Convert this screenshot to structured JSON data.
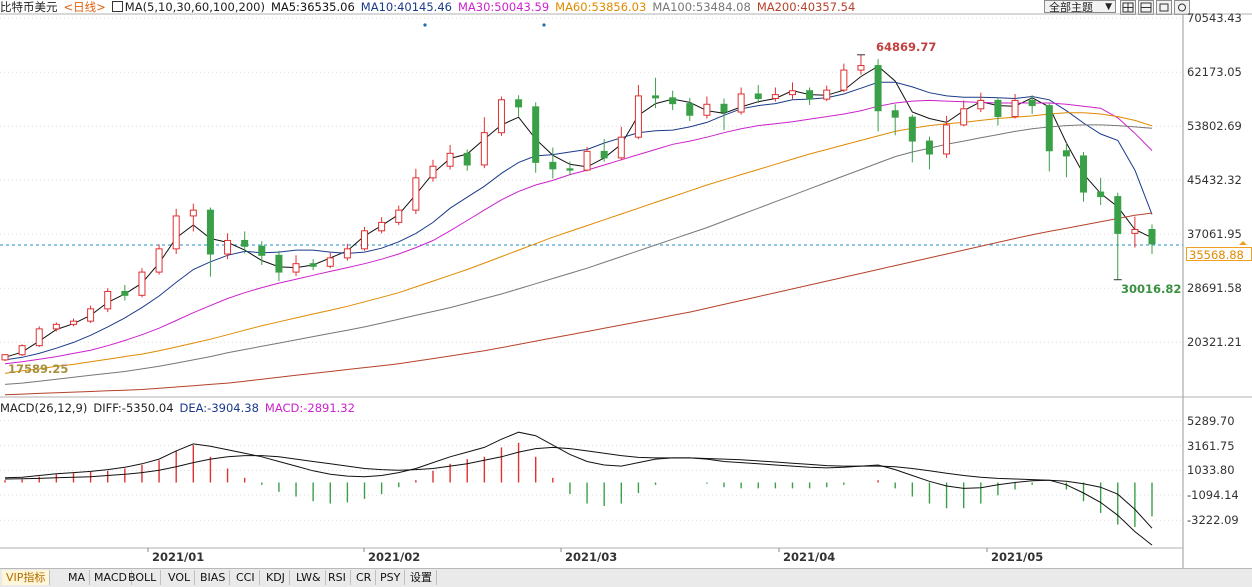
{
  "header": {
    "symbol": "比特币美元",
    "period": "<日线>",
    "ma_legend": "MA(5,10,30,60,100,200)",
    "ma_values": [
      {
        "text": "MA5:36535.06",
        "color": "#111111"
      },
      {
        "text": "MA10:40145.46",
        "color": "#1a3a8a"
      },
      {
        "text": "MA30:50043.59",
        "color": "#cc22cc"
      },
      {
        "text": "MA60:53856.03",
        "color": "#e08a00"
      },
      {
        "text": "MA100:53484.08",
        "color": "#777777"
      },
      {
        "text": "MA200:40357.54",
        "color": "#b5422a"
      }
    ]
  },
  "toolbar": {
    "theme_select": "全部主题"
  },
  "price_labels": {
    "high": "64869.77",
    "low": "30016.82",
    "start_low": "17589.25",
    "current": "35568.88"
  },
  "tabs": [
    "VIP指标",
    "MA",
    "MACD",
    "BOLL",
    "VOL",
    "BIAS",
    "CCI",
    "KDJ",
    "LW&",
    "RSI",
    "CR",
    "PSY",
    "设置"
  ],
  "macd_header": {
    "name": "MACD(26,12,9)",
    "diff": "DIFF:-5350.04",
    "dea": "DEA:-3904.38",
    "macd": "MACD:-2891.32"
  },
  "colors": {
    "up": "#e03030",
    "down": "#3aa048",
    "grid": "#dddddd"
  },
  "chart_data": [
    {
      "type": "candlestick",
      "title": "",
      "y_ticks": [
        70543.43,
        62173.05,
        53802.69,
        45432.32,
        37061.95,
        28691.58,
        20321.21
      ],
      "x_ticks": [
        "2021/01",
        "2021/02",
        "2021/03",
        "2021/04",
        "2021/05"
      ],
      "ylim": [
        12000,
        71500
      ],
      "current_price": 35568.88,
      "annotations": [
        {
          "label": "64869.77",
          "value": 64869.77
        },
        {
          "label": "30016.82",
          "value": 30016.82
        },
        {
          "label": "17589.25",
          "value": 17589.25
        }
      ],
      "series": [
        {
          "name": "MA5",
          "color": "#111111",
          "values": [
            18000,
            18800,
            20500,
            22300,
            23200,
            24500,
            26500,
            27800,
            29500,
            32600,
            36500,
            38500,
            36400,
            35800,
            34600,
            33000,
            32000,
            31900,
            32300,
            33400,
            34500,
            36800,
            38400,
            40100,
            43200,
            46500,
            48800,
            49500,
            51800,
            54000,
            55200,
            51800,
            49300,
            47900,
            47500,
            48900,
            51000,
            55500,
            57300,
            58000,
            57500,
            56200,
            55800,
            56800,
            57600,
            58100,
            59300,
            58700,
            58600,
            59400,
            61500,
            63100,
            60800,
            56000,
            55000,
            54400,
            56200,
            57600,
            57000,
            56900,
            58200,
            56800,
            51200,
            46400,
            43400,
            41300,
            37800,
            36535
          ]
        },
        {
          "name": "MA10",
          "color": "#1a3a8a",
          "values": [
            17600,
            18000,
            18600,
            19400,
            20300,
            21400,
            22700,
            24100,
            25700,
            27500,
            29600,
            31600,
            32800,
            33800,
            34400,
            34200,
            34300,
            34600,
            34600,
            34300,
            34100,
            34300,
            34900,
            35900,
            37200,
            38900,
            41100,
            42800,
            44500,
            46500,
            48200,
            49200,
            49400,
            49800,
            50200,
            51200,
            52000,
            52800,
            53100,
            53200,
            53700,
            54400,
            55500,
            56500,
            57000,
            57300,
            57900,
            58000,
            58200,
            58800,
            59700,
            60600,
            60600,
            59900,
            59000,
            58500,
            58300,
            58300,
            58200,
            58100,
            58400,
            57900,
            56200,
            54300,
            52600,
            51600,
            47000,
            40145
          ]
        },
        {
          "name": "MA30",
          "color": "#cc22cc",
          "values": [
            17000,
            17300,
            17700,
            18100,
            18600,
            19100,
            19800,
            20600,
            21500,
            22500,
            23700,
            24900,
            26000,
            27100,
            28000,
            28800,
            29500,
            30100,
            30700,
            31300,
            31900,
            32500,
            33200,
            34000,
            35000,
            36100,
            37600,
            39200,
            40800,
            42400,
            43700,
            44700,
            45400,
            46300,
            47000,
            47800,
            48600,
            49400,
            50200,
            51000,
            51500,
            52100,
            52800,
            53400,
            53900,
            54200,
            54500,
            54900,
            55300,
            55700,
            56200,
            56900,
            57400,
            57700,
            57800,
            57700,
            57600,
            57500,
            57400,
            57400,
            57400,
            57400,
            57200,
            56900,
            56600,
            55100,
            52700,
            50043
          ]
        },
        {
          "name": "MA60",
          "color": "#e08a00",
          "values": [
            15500,
            15900,
            16200,
            16600,
            16900,
            17300,
            17700,
            18100,
            18500,
            19000,
            19600,
            20200,
            20800,
            21500,
            22200,
            22900,
            23500,
            24100,
            24700,
            25300,
            25900,
            26600,
            27300,
            28000,
            28900,
            29800,
            30700,
            31600,
            32600,
            33600,
            34600,
            35600,
            36600,
            37500,
            38400,
            39300,
            40200,
            41100,
            42000,
            42900,
            43800,
            44700,
            45500,
            46300,
            47100,
            47900,
            48700,
            49500,
            50200,
            50900,
            51600,
            52300,
            53000,
            53500,
            53900,
            54200,
            54400,
            54700,
            55000,
            55200,
            55400,
            55700,
            55900,
            55900,
            55700,
            55300,
            54700,
            53856
          ]
        },
        {
          "name": "MA100",
          "color": "#777777",
          "values": [
            13800,
            14000,
            14300,
            14600,
            14900,
            15200,
            15500,
            15800,
            16200,
            16600,
            17100,
            17600,
            18100,
            18700,
            19200,
            19700,
            20200,
            20700,
            21200,
            21700,
            22200,
            22700,
            23300,
            23900,
            24500,
            25100,
            25700,
            26400,
            27100,
            27800,
            28600,
            29400,
            30200,
            31000,
            31800,
            32700,
            33600,
            34500,
            35400,
            36300,
            37200,
            38100,
            39100,
            40100,
            41100,
            42100,
            43100,
            44100,
            45100,
            46100,
            47100,
            48100,
            49100,
            49800,
            50400,
            51000,
            51500,
            52000,
            52500,
            53000,
            53400,
            53700,
            53900,
            54000,
            54000,
            53900,
            53700,
            53484
          ]
        },
        {
          "name": "MA200",
          "color": "#b5422a",
          "values": [
            12200,
            12300,
            12400,
            12500,
            12600,
            12700,
            12800,
            12900,
            13000,
            13200,
            13400,
            13600,
            13800,
            14000,
            14300,
            14600,
            14900,
            15200,
            15500,
            15800,
            16100,
            16400,
            16700,
            17000,
            17400,
            17800,
            18200,
            18600,
            19000,
            19500,
            20000,
            20500,
            21000,
            21500,
            22000,
            22500,
            23000,
            23500,
            24000,
            24500,
            25000,
            25600,
            26200,
            26800,
            27400,
            28000,
            28600,
            29200,
            29800,
            30400,
            31000,
            31600,
            32200,
            32800,
            33400,
            34000,
            34600,
            35200,
            35800,
            36400,
            37000,
            37500,
            38000,
            38500,
            39000,
            39500,
            40000,
            40357
          ]
        }
      ],
      "candles": [
        [
          17600,
          18400,
          17400,
          18500
        ],
        [
          18400,
          19800,
          18200,
          20000
        ],
        [
          19800,
          22400,
          19600,
          22800
        ],
        [
          22400,
          23100,
          22000,
          23400
        ],
        [
          23100,
          23600,
          22800,
          24000
        ],
        [
          23600,
          25500,
          23300,
          26000
        ],
        [
          25500,
          28200,
          25000,
          28700
        ],
        [
          28200,
          27600,
          26800,
          29200
        ],
        [
          27600,
          31200,
          27300,
          31800
        ],
        [
          31200,
          34800,
          30800,
          35500
        ],
        [
          34800,
          39900,
          34000,
          41000
        ],
        [
          39900,
          40800,
          37500,
          41800
        ],
        [
          40800,
          34000,
          30500,
          41200
        ],
        [
          34000,
          36100,
          33200,
          37200
        ],
        [
          36100,
          35200,
          34100,
          37500
        ],
        [
          35200,
          33800,
          32300,
          36000
        ],
        [
          33800,
          31200,
          29800,
          34500
        ],
        [
          31200,
          32500,
          30600,
          33800
        ],
        [
          32500,
          32100,
          31500,
          33200
        ],
        [
          32100,
          33400,
          31800,
          34200
        ],
        [
          33400,
          34800,
          33000,
          35600
        ],
        [
          34800,
          37600,
          34500,
          38200
        ],
        [
          37600,
          38900,
          37200,
          39700
        ],
        [
          38900,
          40800,
          38500,
          41500
        ],
        [
          40800,
          45800,
          40200,
          47200
        ],
        [
          45800,
          47600,
          45200,
          48600
        ],
        [
          47600,
          49600,
          47100,
          50900
        ],
        [
          49600,
          47800,
          46900,
          50200
        ],
        [
          47800,
          52800,
          47300,
          55200
        ],
        [
          52800,
          57900,
          52300,
          58400
        ],
        [
          57900,
          56800,
          55300,
          58600
        ],
        [
          56800,
          48200,
          46600,
          57500
        ],
        [
          48200,
          47200,
          45700,
          50500
        ],
        [
          47200,
          47000,
          46200,
          48300
        ],
        [
          47000,
          49900,
          46800,
          50600
        ],
        [
          49900,
          48900,
          48300,
          51800
        ],
        [
          48900,
          52100,
          48500,
          53700
        ],
        [
          52100,
          58500,
          51800,
          60200
        ],
        [
          58500,
          58200,
          56600,
          61300
        ],
        [
          58200,
          57300,
          56300,
          59300
        ],
        [
          57300,
          55500,
          54600,
          58200
        ],
        [
          55500,
          57200,
          55000,
          58400
        ],
        [
          57200,
          56000,
          53200,
          58100
        ],
        [
          56000,
          58800,
          55600,
          59800
        ],
        [
          58800,
          58100,
          57400,
          60200
        ],
        [
          58100,
          58700,
          57600,
          59800
        ],
        [
          58700,
          59300,
          58000,
          60600
        ],
        [
          59300,
          58000,
          57100,
          59800
        ],
        [
          58000,
          59400,
          57700,
          60100
        ],
        [
          59400,
          62500,
          59100,
          63500
        ],
        [
          62500,
          63200,
          61800,
          64869
        ],
        [
          63200,
          56200,
          53000,
          64200
        ],
        [
          56200,
          55200,
          52400,
          57200
        ],
        [
          55200,
          51500,
          48200,
          55600
        ],
        [
          51500,
          49500,
          47100,
          52200
        ],
        [
          49500,
          54000,
          48900,
          55400
        ],
        [
          54000,
          56500,
          53800,
          57800
        ],
        [
          56500,
          57800,
          56000,
          59000
        ],
        [
          57800,
          55300,
          53900,
          58300
        ],
        [
          55300,
          57800,
          55000,
          58800
        ],
        [
          57800,
          57000,
          55700,
          58600
        ],
        [
          57000,
          50000,
          46800,
          57300
        ],
        [
          50000,
          49200,
          45900,
          51200
        ],
        [
          49200,
          43600,
          42100,
          49800
        ],
        [
          43600,
          42900,
          41600,
          45800
        ],
        [
          42900,
          37200,
          30016,
          43500
        ],
        [
          37200,
          37800,
          35000,
          39800
        ],
        [
          37800,
          35568,
          34000,
          38600
        ]
      ]
    },
    {
      "type": "macd",
      "title": "",
      "y_ticks": [
        5289.7,
        3161.75,
        1033.8,
        -1094.14,
        -3222.09
      ],
      "ylim": [
        -5600,
        6200
      ],
      "series": [
        {
          "name": "DIFF",
          "color": "#111111",
          "values": [
            400,
            450,
            600,
            750,
            850,
            950,
            1100,
            1300,
            1600,
            2000,
            2700,
            3300,
            3100,
            2800,
            2500,
            2200,
            1800,
            1400,
            1000,
            700,
            550,
            500,
            600,
            850,
            1200,
            1700,
            2200,
            2600,
            3000,
            3700,
            4300,
            4000,
            3200,
            2400,
            1800,
            1500,
            1400,
            1700,
            2000,
            2100,
            2100,
            2000,
            1800,
            1700,
            1600,
            1500,
            1400,
            1300,
            1250,
            1300,
            1400,
            1500,
            1100,
            600,
            100,
            -300,
            -500,
            -450,
            -200,
            0,
            150,
            200,
            -200,
            -900,
            -1700,
            -2800,
            -4200,
            -5350
          ]
        },
        {
          "name": "DEA",
          "color": "#111111",
          "values": [
            300,
            320,
            350,
            400,
            450,
            500,
            600,
            700,
            850,
            1050,
            1350,
            1700,
            2000,
            2200,
            2300,
            2300,
            2200,
            2000,
            1800,
            1600,
            1400,
            1200,
            1100,
            1050,
            1100,
            1200,
            1400,
            1600,
            1900,
            2200,
            2600,
            2900,
            3000,
            2900,
            2700,
            2500,
            2300,
            2150,
            2100,
            2100,
            2100,
            2050,
            2000,
            1950,
            1850,
            1750,
            1650,
            1550,
            1450,
            1400,
            1400,
            1400,
            1350,
            1200,
            1000,
            800,
            600,
            450,
            350,
            300,
            250,
            200,
            100,
            -100,
            -400,
            -1000,
            -2300,
            -3904
          ]
        }
      ]
    }
  ]
}
